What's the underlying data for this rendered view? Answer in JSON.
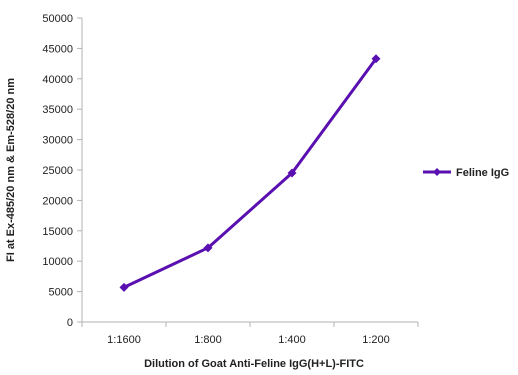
{
  "chart_data": {
    "type": "line",
    "categories": [
      "1:1600",
      "1:800",
      "1:400",
      "1:200"
    ],
    "series": [
      {
        "name": "Feline IgG",
        "values": [
          5700,
          12200,
          24500,
          43300
        ]
      }
    ],
    "xlabel": "Dilution of Goat Anti-Feline IgG(H+L)-FITC",
    "ylabel": "FI at Ex-485/20 nm & Em-528/20 nm",
    "ylim": [
      0,
      50000
    ],
    "yticks": [
      0,
      5000,
      10000,
      15000,
      20000,
      25000,
      30000,
      35000,
      40000,
      45000,
      50000
    ],
    "grid": false,
    "legend": "right",
    "colors": {
      "series": "#5a10b0",
      "axis": "#b3b3b3"
    }
  }
}
